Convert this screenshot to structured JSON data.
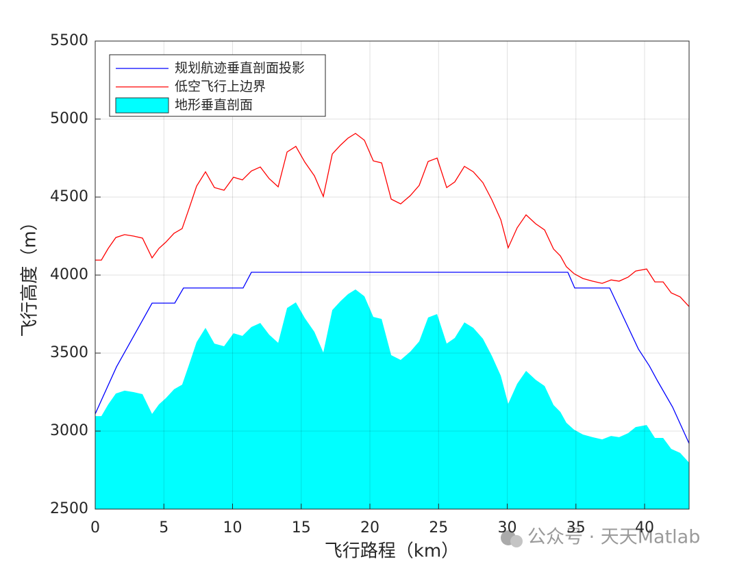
{
  "chart_data": {
    "type": "line",
    "x_label": "飞行路程（km）",
    "y_label": "飞行高度（m）",
    "xlim": [
      0,
      43.24
    ],
    "ylim": [
      2500,
      5500
    ],
    "xticks": [
      0,
      5,
      10,
      15,
      20,
      25,
      30,
      35,
      40
    ],
    "yticks": [
      2500,
      3000,
      3500,
      4000,
      4500,
      5000,
      5500
    ],
    "grid": true,
    "legend": "upper left",
    "watermark": "公众号 · 天天Matlab",
    "series": [
      {
        "name": "规划航迹垂直剖面投影",
        "color": "#0000ff",
        "style": "line",
        "x": [
          0,
          1.55,
          4.14,
          5.79,
          6.43,
          10.77,
          11.37,
          34.41,
          34.91,
          37.46,
          39.55,
          40.35,
          40.95,
          42.04,
          43.24
        ],
        "values": [
          3110,
          3412,
          3820,
          3820,
          3917,
          3917,
          4018,
          4018,
          3917,
          3917,
          3526,
          3417,
          3320,
          3154,
          2921
        ]
      },
      {
        "name": "低空飞行上边界",
        "color": "#ff0000",
        "style": "line",
        "x": [
          0,
          0.45,
          0.95,
          1.5,
          2.14,
          2.79,
          3.44,
          4.14,
          4.64,
          5.14,
          5.74,
          6.33,
          6.83,
          7.38,
          8.03,
          8.68,
          9.38,
          10.07,
          10.72,
          11.37,
          12.02,
          12.67,
          13.32,
          13.97,
          14.61,
          15.26,
          15.96,
          16.61,
          17.26,
          17.86,
          18.4,
          18.95,
          19.6,
          20.25,
          20.85,
          21.55,
          22.24,
          22.94,
          23.59,
          24.24,
          24.89,
          25.59,
          26.18,
          26.88,
          27.53,
          28.23,
          28.88,
          29.53,
          30.07,
          30.72,
          31.37,
          32.07,
          32.72,
          33.37,
          33.87,
          34.31,
          34.86,
          35.51,
          36.21,
          36.91,
          37.56,
          38.15,
          38.8,
          39.35,
          40.15,
          40.75,
          41.35,
          41.94,
          42.59,
          43.24
        ],
        "values": [
          4096,
          4096,
          4171,
          4241,
          4259,
          4250,
          4237,
          4110,
          4171,
          4211,
          4268,
          4298,
          4425,
          4570,
          4662,
          4561,
          4544,
          4627,
          4610,
          4667,
          4693,
          4618,
          4566,
          4789,
          4825,
          4724,
          4636,
          4504,
          4776,
          4833,
          4877,
          4908,
          4864,
          4732,
          4719,
          4487,
          4456,
          4509,
          4575,
          4728,
          4750,
          4561,
          4597,
          4697,
          4662,
          4592,
          4482,
          4355,
          4175,
          4303,
          4386,
          4329,
          4289,
          4167,
          4123,
          4053,
          4009,
          3978,
          3961,
          3947,
          3969,
          3961,
          3987,
          4026,
          4039,
          3956,
          3956,
          3886,
          3860,
          3798
        ]
      },
      {
        "name": "地形垂直剖面",
        "color": "#00ffff",
        "style": "area",
        "x": [
          0,
          0.45,
          0.95,
          1.5,
          2.14,
          2.79,
          3.44,
          4.14,
          4.64,
          5.14,
          5.74,
          6.33,
          6.83,
          7.38,
          8.03,
          8.68,
          9.38,
          10.07,
          10.72,
          11.37,
          12.02,
          12.67,
          13.32,
          13.97,
          14.61,
          15.26,
          15.96,
          16.61,
          17.26,
          17.86,
          18.4,
          18.95,
          19.6,
          20.25,
          20.85,
          21.55,
          22.24,
          22.94,
          23.59,
          24.24,
          24.89,
          25.59,
          26.18,
          26.88,
          27.53,
          28.23,
          28.88,
          29.53,
          30.07,
          30.72,
          31.37,
          32.07,
          32.72,
          33.37,
          33.87,
          34.31,
          34.86,
          35.51,
          36.21,
          36.91,
          37.56,
          38.15,
          38.8,
          39.35,
          40.15,
          40.75,
          41.35,
          41.94,
          42.59,
          43.24
        ],
        "values": [
          3096,
          3096,
          3171,
          3241,
          3259,
          3250,
          3237,
          3110,
          3171,
          3211,
          3268,
          3298,
          3425,
          3570,
          3662,
          3561,
          3544,
          3627,
          3610,
          3667,
          3693,
          3618,
          3566,
          3789,
          3825,
          3724,
          3636,
          3504,
          3776,
          3833,
          3877,
          3908,
          3864,
          3732,
          3719,
          3487,
          3456,
          3509,
          3575,
          3728,
          3750,
          3561,
          3597,
          3697,
          3662,
          3592,
          3482,
          3355,
          3175,
          3303,
          3386,
          3329,
          3289,
          3167,
          3123,
          3053,
          3009,
          2978,
          2961,
          2947,
          2969,
          2961,
          2987,
          3026,
          3039,
          2956,
          2956,
          2886,
          2860,
          2798
        ]
      }
    ]
  }
}
